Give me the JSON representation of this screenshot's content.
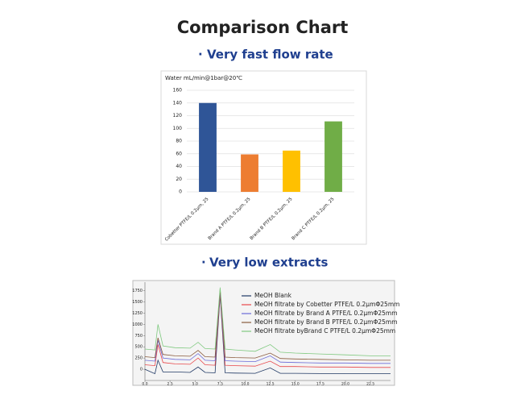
{
  "title": "Comparison Chart",
  "sections": [
    "Very fast flow rate",
    "Very low extracts"
  ],
  "chart_data": [
    {
      "type": "bar",
      "y_label": "Water mL/min@1bar@20℃",
      "categories": [
        "Cobetter PTFE/L 0.2μm, 25",
        "Brand A PTFE/L 0.2μm, 25",
        "Brand B PTFE/L 0.2μm, 25",
        "Brand C PTFE/L 0.2μm, 25"
      ],
      "values": [
        140,
        59,
        65,
        111
      ],
      "colors": [
        "#2f5597",
        "#ed7d31",
        "#ffc000",
        "#70ad47"
      ],
      "ylim": [
        0,
        160
      ],
      "yticks": [
        0,
        20,
        40,
        60,
        80,
        100,
        120,
        140,
        160
      ],
      "grid": true
    },
    {
      "type": "line",
      "x": [
        0,
        1,
        1.3,
        1.8,
        3,
        4.5,
        5.3,
        6,
        7,
        7.5,
        8,
        9,
        11,
        12.5,
        13.5,
        15,
        17.5,
        20,
        22.5,
        24.5
      ],
      "series": [
        {
          "name": "MeOH Blank",
          "color": "#1f3864",
          "values": [
            0,
            -100,
            200,
            -60,
            -60,
            -70,
            50,
            -70,
            -80,
            1650,
            -80,
            -85,
            -90,
            30,
            -90,
            -90,
            -95,
            -100,
            -100,
            -100
          ]
        },
        {
          "name": "MeOH filtrate by Cobetter PTFE/L 0.2μmΦ25mm",
          "color": "#e8474a",
          "values": [
            100,
            80,
            550,
            150,
            120,
            110,
            250,
            100,
            90,
            1700,
            90,
            80,
            70,
            180,
            60,
            60,
            50,
            50,
            40,
            40
          ]
        },
        {
          "name": "MeOH filtrate by Brand A PTFE/L 0.2μmΦ25mm",
          "color": "#6a6ad8",
          "values": [
            200,
            180,
            650,
            250,
            220,
            210,
            350,
            200,
            190,
            1750,
            190,
            180,
            170,
            300,
            160,
            150,
            140,
            140,
            130,
            130
          ]
        },
        {
          "name": "MeOH filtrate by Brand B PTFE/L 0.2μmΦ25mm",
          "color": "#8a5a3c",
          "values": [
            280,
            260,
            700,
            330,
            300,
            290,
            420,
            280,
            270,
            1780,
            270,
            260,
            250,
            360,
            240,
            230,
            220,
            210,
            200,
            200
          ]
        },
        {
          "name": "MeOH filtrate byBrand C PTFE/L 0.2μmΦ25mm",
          "color": "#7fc97f",
          "values": [
            450,
            430,
            1000,
            520,
            480,
            470,
            600,
            460,
            450,
            1820,
            450,
            430,
            400,
            550,
            380,
            360,
            340,
            320,
            300,
            300
          ]
        }
      ],
      "xlim": [
        0,
        24.5
      ],
      "xticks": [
        {
          "value": 0,
          "label": "0.0"
        },
        2.5,
        {
          "value": 5,
          "label": "5.0"
        },
        7.5,
        {
          "value": 10,
          "label": "10.0"
        },
        12.5,
        {
          "value": 15,
          "label": "15.0"
        },
        17.5,
        {
          "value": 20,
          "label": "20.0"
        },
        22.5
      ],
      "ylim": [
        -250,
        1850
      ],
      "yticks": [
        0,
        250,
        500,
        750,
        1000,
        1250,
        1500,
        1750
      ],
      "grid": false
    }
  ]
}
